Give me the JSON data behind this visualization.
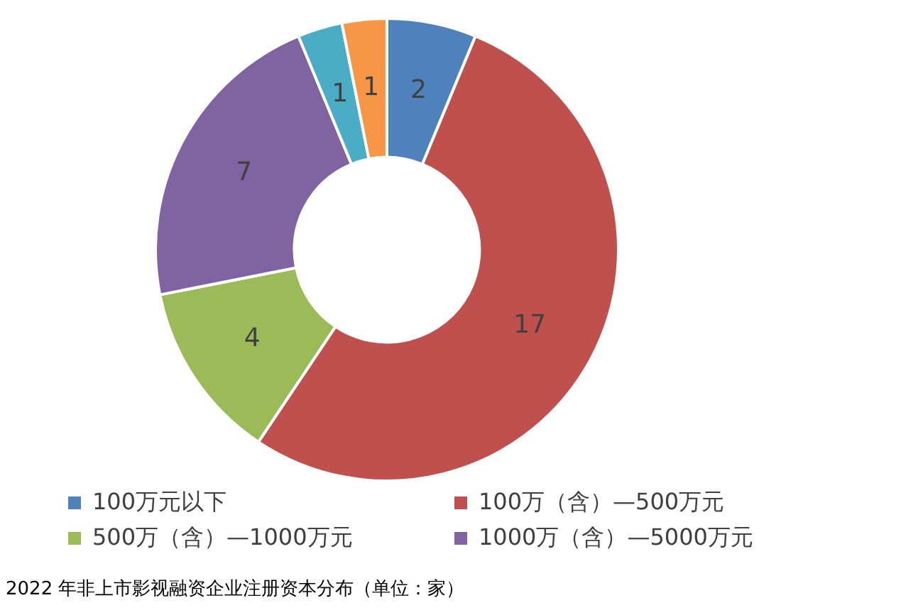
{
  "chart_data": {
    "type": "donut",
    "categories": [
      "100万元以下",
      "100万（含）—500万元",
      "500万（含）—1000万元",
      "1000万（含）—5000万元",
      null,
      null
    ],
    "values": [
      2,
      17,
      4,
      7,
      1,
      1
    ],
    "colors": [
      "#4f81bd",
      "#c0504d",
      "#9bbb59",
      "#8064a2",
      "#4bacc6",
      "#f79646"
    ],
    "data_labels": true,
    "legend": "bottom",
    "annotations": [
      "2022 年非上市影视融资企业注册资本分布（单位：家）"
    ]
  }
}
